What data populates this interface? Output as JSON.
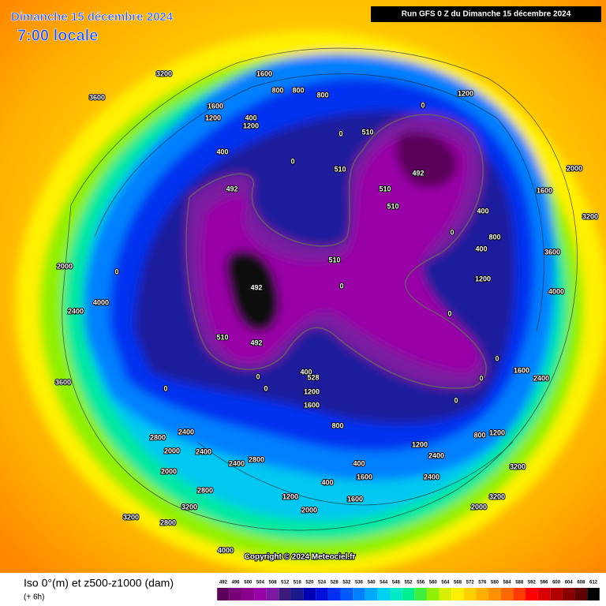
{
  "header": {
    "date": "Dimanche 15 décembre 2024",
    "time": "7:00 locale",
    "run": "Run GFS 0 Z du Dimanche 15 décembre 2024"
  },
  "map": {
    "labels": [
      3200,
      1600,
      800,
      800,
      800,
      1200,
      0,
      3600,
      1600,
      1200,
      400,
      1200,
      0,
      510,
      0,
      400,
      510,
      492,
      492,
      510,
      510,
      400,
      2000,
      1600,
      3200,
      0,
      510,
      800,
      400,
      1200,
      4000,
      3600,
      2000,
      0,
      492,
      0,
      2400,
      4000,
      0,
      510,
      492,
      0,
      1600,
      2400,
      3600,
      0,
      0,
      0,
      400,
      528,
      1200,
      0,
      0,
      1600,
      800,
      2800,
      2400,
      1200,
      2400,
      800,
      1200,
      2000,
      2400,
      2800,
      2400,
      400,
      3200,
      2000,
      1600,
      400,
      2400,
      1200,
      1600,
      2800,
      3200,
      2000,
      3200,
      2000,
      3200,
      2800,
      4000
    ],
    "copyright": "Copyright © 2024 Meteociel.fr"
  },
  "footer": {
    "title": "Iso 0°(m) et z500-z1000 (dam)",
    "step": "(+ 6h)"
  },
  "legend": {
    "levels": [
      492,
      496,
      500,
      504,
      508,
      512,
      516,
      520,
      524,
      528,
      532,
      536,
      540,
      544,
      548,
      552,
      556,
      560,
      564,
      568,
      572,
      576,
      580,
      584,
      588,
      592,
      596,
      600,
      604,
      608,
      612
    ],
    "colors": [
      "#5a005a",
      "#78007a",
      "#8c0090",
      "#9a00a8",
      "#7a1aa0",
      "#3c1a78",
      "#1a1a8c",
      "#0000b4",
      "#0010d8",
      "#0030f0",
      "#0058ff",
      "#0080ff",
      "#00a8ff",
      "#00d0f0",
      "#00e8c8",
      "#00f090",
      "#40f040",
      "#90f000",
      "#d8f000",
      "#fff000",
      "#ffd000",
      "#ffb000",
      "#ff9000",
      "#ff6800",
      "#ff3c00",
      "#ff0000",
      "#d80000",
      "#b00000",
      "#880000",
      "#600000",
      "#000000"
    ]
  }
}
